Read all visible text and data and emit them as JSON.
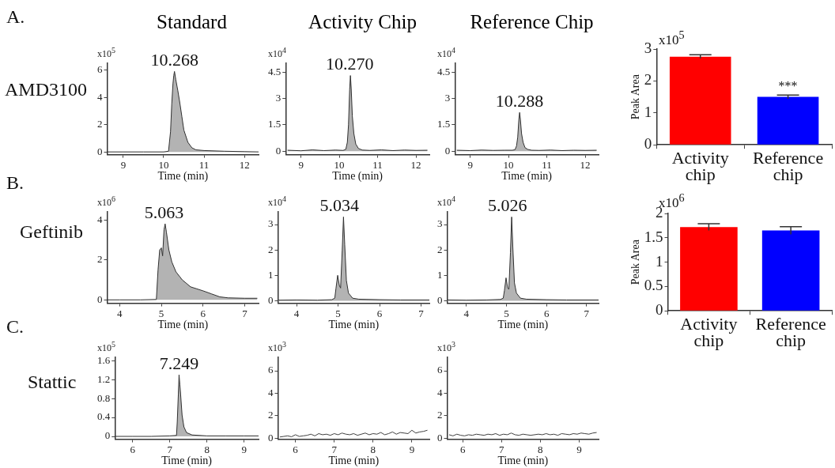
{
  "chart_data": [
    {
      "type": "area",
      "title": "Standard",
      "ylabel": "x10$^{5}$",
      "xlabel": "Time (min)",
      "marker": "none",
      "x": [
        8.6,
        9.0,
        9.5,
        10.0,
        10.12,
        10.17,
        10.2,
        10.23,
        10.25,
        10.268,
        10.3,
        10.35,
        10.4,
        10.45,
        10.5,
        10.6,
        10.7,
        10.8,
        11.0,
        11.5,
        12.0,
        12.35
      ],
      "series": [
        {
          "color": "#b3b3b3",
          "values": [
            0,
            0,
            0,
            0,
            0.05,
            1.5,
            3.5,
            5.0,
            5.6,
            5.9,
            5.3,
            4.5,
            3.6,
            2.6,
            1.6,
            0.7,
            0.3,
            0.15,
            0.1,
            0.05,
            0.02,
            0
          ]
        }
      ],
      "xlim": [
        8.6,
        12.35
      ],
      "ylim": [
        -0.2,
        6.5
      ],
      "xticks": [
        9,
        10,
        11,
        12
      ],
      "yticks": [
        0,
        2,
        4,
        6
      ],
      "annotations": [
        "A.",
        "AMD3100",
        {
          "text": "10.268",
          "x": 10.268,
          "y": 5.9
        }
      ]
    },
    {
      "type": "area",
      "title": "Activity Chip",
      "ylabel": "x10$^{4}$",
      "xlabel": "Time (min)",
      "marker": "none",
      "x": [
        8.65,
        9.0,
        9.3,
        9.6,
        9.9,
        10.1,
        10.17,
        10.21,
        10.24,
        10.27,
        10.29,
        10.31,
        10.34,
        10.38,
        10.43,
        10.5,
        10.6,
        10.8,
        11.1,
        11.4,
        11.7,
        12.0,
        12.3
      ],
      "series": [
        {
          "color": "#b3b3b3",
          "values": [
            0.05,
            0.02,
            0.07,
            0.03,
            0.06,
            0.04,
            0.1,
            0.5,
            1.5,
            3.5,
            4.3,
            3.6,
            2.0,
            1.0,
            0.4,
            0.15,
            0.06,
            0.04,
            0.07,
            0.03,
            0.06,
            0.04,
            0.05
          ]
        }
      ],
      "xlim": [
        8.6,
        12.35
      ],
      "ylim": [
        -0.2,
        5
      ],
      "xticks": [
        9,
        10,
        11,
        12
      ],
      "yticks": [
        0,
        1.5,
        3,
        4.5
      ],
      "annotations": [
        {
          "text": "10.270",
          "x": 10.27,
          "y": 4.3
        }
      ]
    },
    {
      "type": "area",
      "title": "Reference Chip",
      "ylabel": "x10$^{4}$",
      "xlabel": "Time (min)",
      "marker": "none",
      "x": [
        8.65,
        9.0,
        9.3,
        9.6,
        9.9,
        10.1,
        10.17,
        10.21,
        10.24,
        10.27,
        10.29,
        10.31,
        10.34,
        10.38,
        10.43,
        10.5,
        10.6,
        10.8,
        11.1,
        11.4,
        11.7,
        12.0,
        12.3
      ],
      "series": [
        {
          "color": "#b3b3b3",
          "values": [
            0.05,
            0.03,
            0.06,
            0.04,
            0.05,
            0.05,
            0.08,
            0.3,
            0.8,
            1.8,
            2.2,
            1.8,
            1.0,
            0.5,
            0.2,
            0.1,
            0.05,
            0.04,
            0.06,
            0.03,
            0.05,
            0.04,
            0.05
          ]
        }
      ],
      "xlim": [
        8.6,
        12.35
      ],
      "ylim": [
        -0.2,
        5
      ],
      "xticks": [
        9,
        10,
        11,
        12
      ],
      "yticks": [
        0,
        1.5,
        3,
        4.5
      ],
      "annotations": [
        {
          "text": "10.288",
          "x": 10.288,
          "y": 2.2
        }
      ]
    },
    {
      "type": "bar",
      "ylabel": "Peak Area",
      "categories": [
        "Activity chip",
        "Reference chip"
      ],
      "values": [
        2.76,
        1.5
      ],
      "colors": [
        "#ff0000",
        "#0000ff"
      ],
      "errors": [
        0.06,
        0.06
      ],
      "ylim": [
        0,
        3
      ],
      "yticks": [
        0,
        1,
        2,
        3
      ],
      "annotations": [
        "x10$^{5}$",
        {
          "text": "***",
          "x": "Reference chip",
          "y": 1.57
        }
      ]
    },
    {
      "type": "area",
      "ylabel": "x10$^{6}$",
      "xlabel": "Time (min)",
      "marker": "none",
      "x": [
        3.7,
        4.0,
        4.5,
        4.88,
        4.92,
        4.96,
        5.0,
        5.03,
        5.063,
        5.09,
        5.12,
        5.18,
        5.25,
        5.35,
        5.5,
        5.7,
        5.85,
        6.0,
        6.2,
        6.4,
        6.6,
        7.0,
        7.3
      ],
      "series": [
        {
          "color": "#b3b3b3",
          "values": [
            0,
            0,
            0,
            0.02,
            1.5,
            2.5,
            2.6,
            2.2,
            3.5,
            3.8,
            3.4,
            2.5,
            1.9,
            1.4,
            1.0,
            0.65,
            0.55,
            0.45,
            0.3,
            0.15,
            0.1,
            0.08,
            0.08
          ]
        }
      ],
      "xlim": [
        3.7,
        7.33
      ],
      "ylim": [
        -0.17,
        4.4
      ],
      "xticks": [
        4,
        5,
        6,
        7
      ],
      "yticks": [
        0,
        2,
        4
      ],
      "annotations": [
        "B.",
        "Geftinib",
        {
          "text": "5.063",
          "x": 5.063,
          "y": 3.8
        }
      ]
    },
    {
      "type": "area",
      "ylabel": "x10$^{4}$",
      "xlabel": "Time (min)",
      "marker": "none",
      "x": [
        3.55,
        4.0,
        4.5,
        4.85,
        4.92,
        4.95,
        4.99,
        5.03,
        5.06,
        5.1,
        5.13,
        5.16,
        5.2,
        5.25,
        5.35,
        5.5,
        6.0,
        6.5,
        7.2
      ],
      "series": [
        {
          "color": "#b3b3b3",
          "values": [
            0.02,
            0.03,
            0.02,
            0.04,
            0.1,
            0.5,
            1.0,
            0.6,
            0.5,
            2.0,
            3.3,
            2.2,
            0.8,
            0.3,
            0.1,
            0.06,
            0.04,
            0.03,
            0.03
          ]
        }
      ],
      "xlim": [
        3.55,
        7.2
      ],
      "ylim": [
        -0.1,
        3.5
      ],
      "xticks": [
        4,
        5,
        6,
        7
      ],
      "yticks": [
        0,
        1,
        2,
        3
      ],
      "annotations": [
        {
          "text": "5.034",
          "x": 5.034,
          "y": 3.3
        }
      ]
    },
    {
      "type": "area",
      "ylabel": "x10$^{4}$",
      "xlabel": "Time (min)",
      "marker": "none",
      "x": [
        3.52,
        4.0,
        4.5,
        4.85,
        4.92,
        4.95,
        4.99,
        5.03,
        5.06,
        5.1,
        5.13,
        5.16,
        5.2,
        5.25,
        5.35,
        5.5,
        6.0,
        6.5,
        7.3
      ],
      "series": [
        {
          "color": "#b3b3b3",
          "values": [
            0.03,
            0.02,
            0.03,
            0.05,
            0.1,
            0.4,
            0.9,
            0.5,
            0.45,
            1.9,
            3.3,
            2.1,
            0.7,
            0.3,
            0.1,
            0.06,
            0.04,
            0.03,
            0.03
          ]
        }
      ],
      "xlim": [
        3.52,
        7.3
      ],
      "ylim": [
        -0.1,
        3.5
      ],
      "xticks": [
        4,
        5,
        6,
        7
      ],
      "yticks": [
        0,
        1,
        2,
        3
      ],
      "annotations": [
        {
          "text": "5.026",
          "x": 5.026,
          "y": 3.3
        }
      ]
    },
    {
      "type": "bar",
      "ylabel": "Peak Area",
      "categories": [
        "Activity chip",
        "Reference chip"
      ],
      "values": [
        1.72,
        1.65
      ],
      "colors": [
        "#ff0000",
        "#0000ff"
      ],
      "errors": [
        0.07,
        0.08
      ],
      "ylim": [
        0,
        2
      ],
      "yticks": [
        0,
        0.5,
        1,
        1.5,
        2
      ],
      "annotations": [
        "x10$^{6}$"
      ]
    },
    {
      "type": "area",
      "ylabel": "x10$^{5}$",
      "xlabel": "Time (min)",
      "marker": "none",
      "x": [
        5.52,
        6.0,
        6.5,
        7.0,
        7.18,
        7.2,
        7.23,
        7.249,
        7.27,
        7.29,
        7.33,
        7.38,
        7.45,
        7.6,
        8.0,
        8.5,
        9.0,
        9.39
      ],
      "series": [
        {
          "color": "#b3b3b3",
          "values": [
            0,
            0,
            0,
            0.01,
            0.02,
            0.3,
            0.9,
            1.3,
            1.1,
            0.9,
            0.45,
            0.2,
            0.08,
            0.03,
            0.01,
            0.01,
            0.01,
            0.01
          ]
        }
      ],
      "xlim": [
        5.52,
        9.39
      ],
      "ylim": [
        -0.06,
        1.67
      ],
      "xticks": [
        6,
        7,
        8,
        9
      ],
      "yticks": [
        0,
        0.4,
        0.8,
        1.2,
        1.6
      ],
      "annotations": [
        "C.",
        "Stattic",
        {
          "text": "7.249",
          "x": 7.249,
          "y": 1.3
        }
      ]
    },
    {
      "type": "line",
      "ylabel": "x10$^{3}$",
      "xlabel": "Time (min)",
      "marker": "none",
      "x": [
        5.6,
        5.7,
        5.8,
        5.9,
        6.0,
        6.1,
        6.2,
        6.3,
        6.4,
        6.5,
        6.6,
        6.7,
        6.8,
        6.9,
        7.0,
        7.1,
        7.2,
        7.3,
        7.4,
        7.5,
        7.6,
        7.7,
        7.8,
        7.9,
        8.0,
        8.1,
        8.2,
        8.3,
        8.4,
        8.5,
        8.6,
        8.7,
        8.8,
        8.9,
        9.0,
        9.1,
        9.2,
        9.3,
        9.4
      ],
      "series": [
        {
          "color": "#404040",
          "values": [
            0.1,
            0.15,
            0.2,
            0.12,
            0.3,
            0.15,
            0.2,
            0.25,
            0.35,
            0.2,
            0.4,
            0.3,
            0.35,
            0.25,
            0.4,
            0.3,
            0.45,
            0.35,
            0.3,
            0.4,
            0.25,
            0.35,
            0.45,
            0.3,
            0.4,
            0.35,
            0.5,
            0.3,
            0.4,
            0.55,
            0.35,
            0.5,
            0.45,
            0.4,
            0.7,
            0.45,
            0.55,
            0.6,
            0.7
          ]
        }
      ],
      "xlim": [
        5.55,
        9.45
      ],
      "ylim": [
        -0.1,
        7.2
      ],
      "xticks": [
        6,
        7,
        8,
        9
      ],
      "yticks": [
        0,
        2,
        4,
        6
      ]
    },
    {
      "type": "line",
      "ylabel": "x10$^{3}$",
      "xlabel": "Time (min)",
      "marker": "none",
      "x": [
        5.65,
        5.75,
        5.85,
        5.95,
        6.05,
        6.15,
        6.25,
        6.35,
        6.45,
        6.55,
        6.65,
        6.75,
        6.85,
        6.95,
        7.05,
        7.15,
        7.25,
        7.35,
        7.45,
        7.55,
        7.65,
        7.75,
        7.85,
        7.95,
        8.05,
        8.15,
        8.25,
        8.35,
        8.45,
        8.55,
        8.65,
        8.75,
        8.85,
        8.95,
        9.05,
        9.15,
        9.25,
        9.35,
        9.45
      ],
      "series": [
        {
          "color": "#404040",
          "values": [
            0.3,
            0.2,
            0.35,
            0.25,
            0.2,
            0.3,
            0.25,
            0.35,
            0.3,
            0.25,
            0.35,
            0.3,
            0.4,
            0.25,
            0.35,
            0.3,
            0.45,
            0.3,
            0.25,
            0.35,
            0.3,
            0.25,
            0.3,
            0.35,
            0.3,
            0.4,
            0.3,
            0.35,
            0.25,
            0.4,
            0.35,
            0.3,
            0.4,
            0.35,
            0.45,
            0.4,
            0.35,
            0.45,
            0.5
          ]
        }
      ],
      "xlim": [
        5.6,
        9.5
      ],
      "ylim": [
        -0.1,
        7.2
      ],
      "xticks": [
        6,
        7,
        8,
        9
      ],
      "yticks": [
        0,
        2,
        4,
        6
      ]
    }
  ]
}
